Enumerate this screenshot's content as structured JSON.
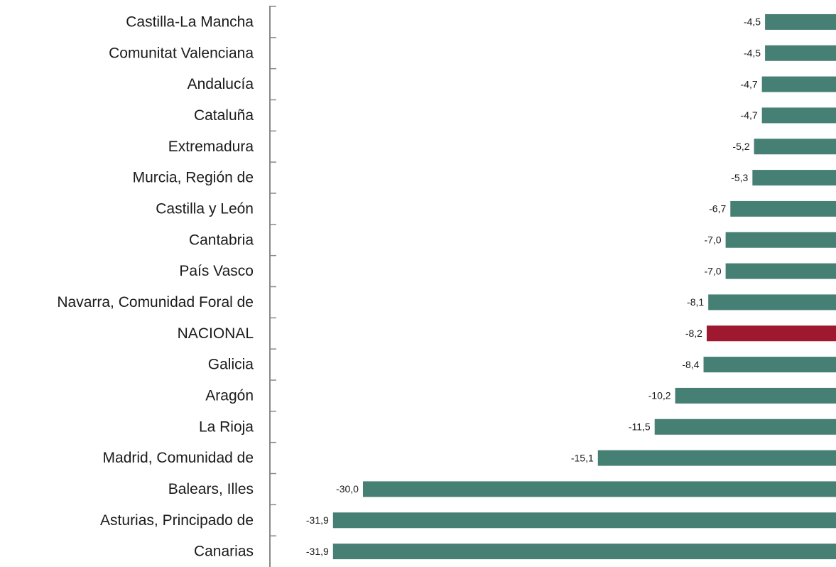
{
  "chart_data": {
    "type": "hbar",
    "categories": [
      "Castilla-La Mancha",
      "Comunitat Valenciana",
      "Andalucía",
      "Cataluña",
      "Extremadura",
      "Murcia, Región de",
      "Castilla y León",
      "Cantabria",
      "País Vasco",
      "Navarra, Comunidad Foral de",
      "NACIONAL",
      "Galicia",
      "Aragón",
      "La Rioja",
      "Madrid, Comunidad de",
      "Balears, Illes",
      "Asturias, Principado de",
      "Canarias"
    ],
    "values": [
      -4.5,
      -4.5,
      -4.7,
      -4.7,
      -5.2,
      -5.3,
      -6.7,
      -7.0,
      -7.0,
      -8.1,
      -8.2,
      -8.4,
      -10.2,
      -11.5,
      -15.1,
      -30.0,
      -31.9,
      -31.9
    ],
    "value_labels": [
      "-4,5",
      "-4,5",
      "-4,7",
      "-4,7",
      "-5,2",
      "-5,3",
      "-6,7",
      "-7,0",
      "-7,0",
      "-8,1",
      "-8,2",
      "-8,4",
      "-10,2",
      "-11,5",
      "-15,1",
      "-30,0",
      "-31,9",
      "-31,9"
    ],
    "colors": [
      "#467f74",
      "#467f74",
      "#467f74",
      "#467f74",
      "#467f74",
      "#467f74",
      "#467f74",
      "#467f74",
      "#467f74",
      "#467f74",
      "#9e1830",
      "#467f74",
      "#467f74",
      "#467f74",
      "#467f74",
      "#467f74",
      "#467f74",
      "#467f74"
    ],
    "xlim": [
      -35.9,
      0
    ]
  }
}
